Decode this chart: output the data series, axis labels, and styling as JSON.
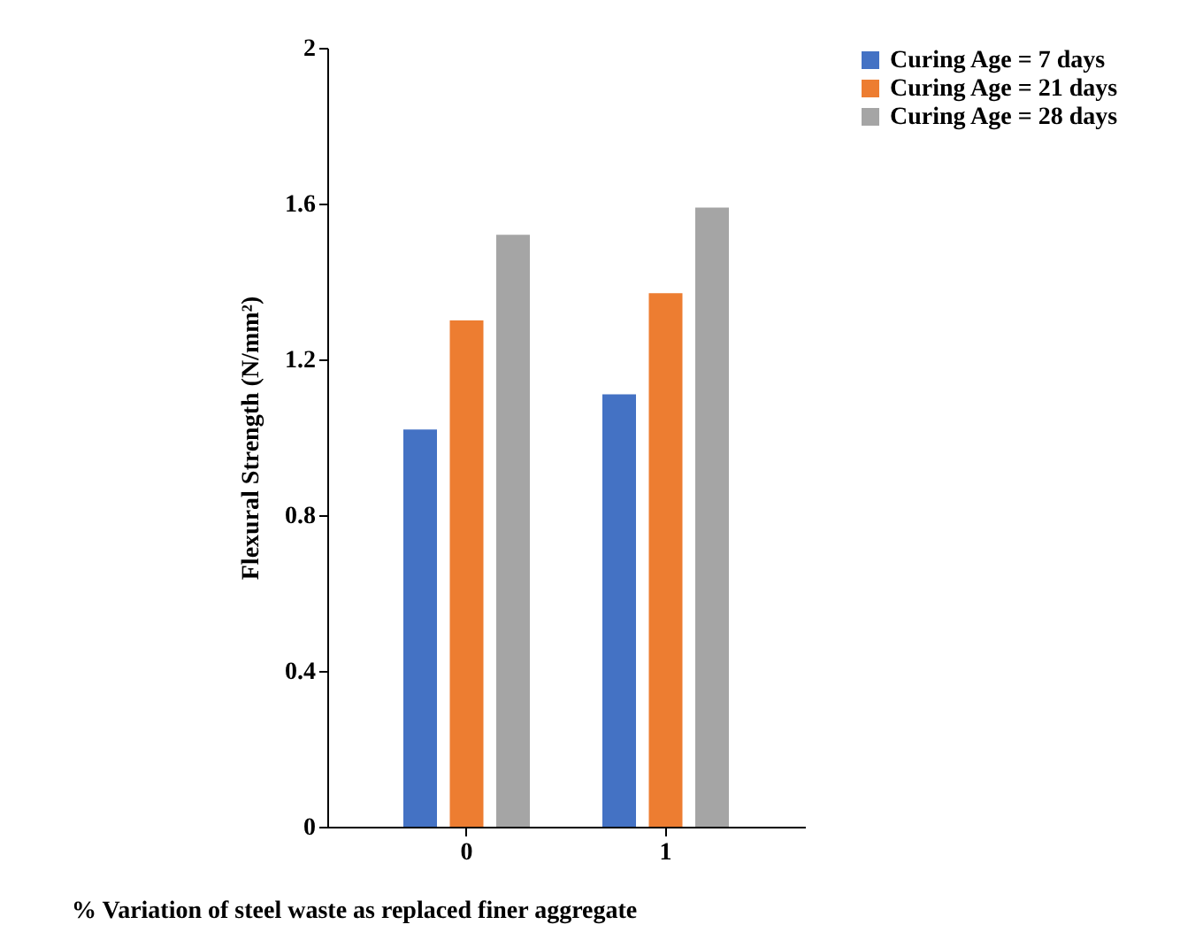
{
  "chart_data": {
    "type": "bar",
    "xlabel": "% Variation of steel waste as replaced finer aggregate",
    "ylabel": "Flexural Strength (N/mm²)",
    "categories": [
      "0",
      "1"
    ],
    "series": [
      {
        "name": "Curing Age = 7 days",
        "color": "#4472c4",
        "values": [
          1.02,
          1.11
        ]
      },
      {
        "name": "Curing Age = 21 days",
        "color": "#ed7d31",
        "values": [
          1.3,
          1.37
        ]
      },
      {
        "name": "Curing Age = 28 days",
        "color": "#a5a5a5",
        "values": [
          1.52,
          1.59
        ]
      }
    ],
    "ylim": [
      0,
      2
    ],
    "yticks": [
      0,
      0.4,
      0.8,
      1.2,
      1.6,
      2
    ],
    "grid": false,
    "legend": "right"
  }
}
